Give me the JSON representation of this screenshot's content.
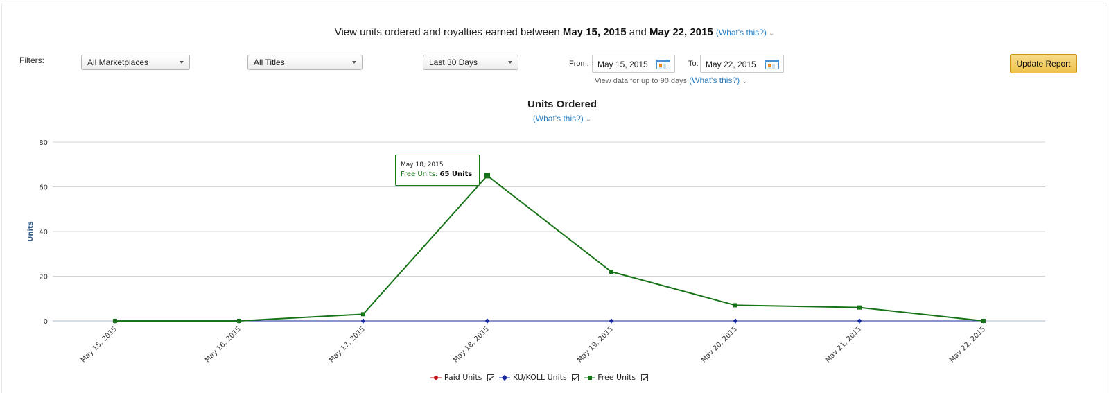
{
  "header": {
    "prefix": "View units ordered and royalties earned between",
    "start": "May 15, 2015",
    "and": "and",
    "end": "May 22, 2015",
    "help": "(What's this?)"
  },
  "filters": {
    "label": "Filters:",
    "marketplace": "All Marketplaces",
    "titles": "All Titles",
    "range": "Last 30 Days",
    "from_label": "From:",
    "from_value": "May 15, 2015",
    "to_label": "To:",
    "to_value": "May 22, 2015",
    "hint": "View data for up to 90 days",
    "hint_link": "(What's this?)",
    "update": "Update Report"
  },
  "chart_data": {
    "type": "line",
    "title": "Units Ordered",
    "subtitle": "(What's this?)",
    "ylabel": "Units",
    "xlabel": "",
    "ylim": [
      0,
      80
    ],
    "yticks": [
      0,
      20,
      40,
      60,
      80
    ],
    "grid": true,
    "legend_position": "bottom-center",
    "categories": [
      "May 15, 2015",
      "May 16, 2015",
      "May 17, 2015",
      "May 18, 2015",
      "May 19, 2015",
      "May 20, 2015",
      "May 21, 2015",
      "May 22, 2015"
    ],
    "series": [
      {
        "name": "Paid Units",
        "color": "#c0181f",
        "marker": "circle",
        "values": [
          0,
          0,
          0,
          0,
          0,
          0,
          0,
          0
        ],
        "visible_markers": false
      },
      {
        "name": "KU/KOLL Units",
        "color": "#1a2aa0",
        "marker": "diamond",
        "values": [
          0,
          0,
          0,
          0,
          0,
          0,
          0,
          0
        ]
      },
      {
        "name": "Free Units",
        "color": "#177317",
        "marker": "square",
        "values": [
          0,
          0,
          3,
          65,
          22,
          7,
          6,
          0
        ]
      }
    ],
    "tooltip": {
      "date": "May 18, 2015",
      "label": "Free Units:",
      "value": "65 Units"
    }
  }
}
